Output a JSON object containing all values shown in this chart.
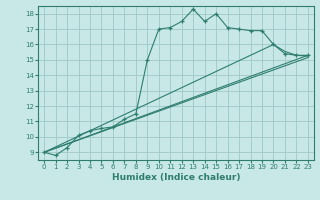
{
  "xlabel": "Humidex (Indice chaleur)",
  "bg_color": "#c8e8e8",
  "grid_color": "#a0c8c8",
  "line_color": "#2e7d6e",
  "xlim": [
    -0.5,
    23.5
  ],
  "ylim": [
    8.5,
    18.5
  ],
  "xticks": [
    0,
    1,
    2,
    3,
    4,
    5,
    6,
    7,
    8,
    9,
    10,
    11,
    12,
    13,
    14,
    15,
    16,
    17,
    18,
    19,
    20,
    21,
    22,
    23
  ],
  "yticks": [
    9,
    10,
    11,
    12,
    13,
    14,
    15,
    16,
    17,
    18
  ],
  "line1_x": [
    0,
    1,
    2,
    3,
    4,
    5,
    6,
    7,
    8,
    9,
    10,
    11,
    12,
    13,
    14,
    15,
    16,
    17,
    18,
    19,
    20,
    21,
    22,
    23
  ],
  "line1_y": [
    9.0,
    8.8,
    9.3,
    10.1,
    10.4,
    10.55,
    10.65,
    11.15,
    11.5,
    15.0,
    17.0,
    17.1,
    17.5,
    18.3,
    17.5,
    18.0,
    17.1,
    17.0,
    16.9,
    16.9,
    16.0,
    15.4,
    15.3,
    15.3
  ],
  "line2_x": [
    0,
    23
  ],
  "line2_y": [
    9.0,
    15.3
  ],
  "line3_x": [
    0,
    20,
    21,
    22,
    23
  ],
  "line3_y": [
    9.0,
    16.0,
    15.55,
    15.3,
    15.25
  ],
  "line4_x": [
    0,
    23
  ],
  "line4_y": [
    9.0,
    15.15
  ]
}
